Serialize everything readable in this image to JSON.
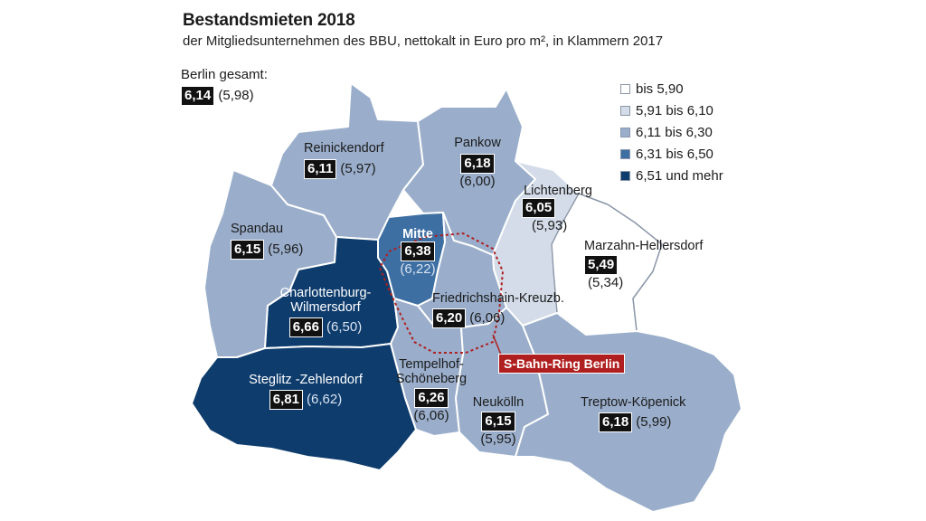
{
  "title": "Bestandsmieten 2018",
  "subtitle": "der Mitgliedsunternehmen des BBU, nettokalt in Euro pro m², in Klammern 2017",
  "total": {
    "label": "Berlin gesamt:",
    "value": "6,14",
    "prev": "(5,98)"
  },
  "legend": [
    {
      "label": "bis 5,90",
      "color": "#ffffff"
    },
    {
      "label": "5,91 bis 6,10",
      "color": "#d3dce8"
    },
    {
      "label": "6,11 bis 6,30",
      "color": "#9aaecb"
    },
    {
      "label": "6,31 bis 6,50",
      "color": "#3e6fa3"
    },
    {
      "label": "6,51 und mehr",
      "color": "#0e3c6d"
    }
  ],
  "districts": {
    "reinickendorf": {
      "name": "Reinickendorf",
      "value": "6,11",
      "prev": "(5,97)"
    },
    "pankow": {
      "name": "Pankow",
      "value": "6,18",
      "prev": "(6,00)"
    },
    "lichtenberg": {
      "name": "Lichtenberg",
      "value": "6,05",
      "prev": "(5,93)"
    },
    "spandau": {
      "name": "Spandau",
      "value": "6,15",
      "prev": "(5,96)"
    },
    "mitte": {
      "name": "Mitte",
      "value": "6,38",
      "prev": "(6,22)"
    },
    "marzahn": {
      "name": "Marzahn-Hellersdorf",
      "value": "5,49",
      "prev": "(5,34)"
    },
    "charlottenburg": {
      "name1": "Charlottenburg-",
      "name2": "Wilmersdorf",
      "value": "6,66",
      "prev": "(6,50)"
    },
    "friedrichshain": {
      "name": "Friedrichshain-Kreuzb.",
      "value": "6,20",
      "prev": "(6,06)"
    },
    "steglitz": {
      "name": "Steglitz -Zehlendorf",
      "value": "6,81",
      "prev": "(6,62)"
    },
    "tempelhof": {
      "name1": "Tempelhof-",
      "name2": "Schöneberg",
      "value": "6,26",
      "prev": "(6,06)"
    },
    "neukoelln": {
      "name": "Neukölln",
      "value": "6,15",
      "prev": "(5,95)"
    },
    "treptow": {
      "name": "Treptow-Köpenick",
      "value": "6,18",
      "prev": "(5,99)"
    }
  },
  "sbahn_label": "S-Bahn-Ring Berlin",
  "colors": {
    "border": "#ffffff",
    "ring": "#b01f1f"
  }
}
